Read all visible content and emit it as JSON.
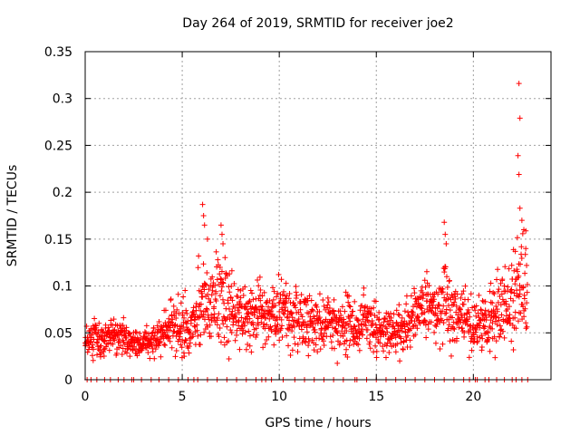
{
  "chart_data": {
    "type": "scatter",
    "title": "Day 264 of 2019, SRMTID for receiver joe2",
    "xlabel": "GPS time / hours",
    "ylabel": "SRMTID / TECUs",
    "xlim": [
      0,
      24
    ],
    "ylim": [
      0,
      0.35
    ],
    "x_ticks": [
      "0",
      "5",
      "10",
      "15",
      "20"
    ],
    "x_tick_values": [
      0,
      5,
      10,
      15,
      20
    ],
    "y_ticks": [
      "0",
      "0.05",
      "0.1",
      "0.15",
      "0.2",
      "0.25",
      "0.3",
      "0.35"
    ],
    "y_tick_values": [
      0,
      0.05,
      0.1,
      0.15,
      0.2,
      0.25,
      0.3,
      0.35
    ],
    "grid": true,
    "marker": "+",
    "color": "#ff0000",
    "series": [
      {
        "name": "SRMTID",
        "profile_hours": [
          0,
          0.5,
          1,
          1.5,
          2,
          2.5,
          3,
          3.5,
          4,
          4.5,
          5,
          5.5,
          6,
          6.5,
          7,
          7.5,
          8,
          8.5,
          9,
          9.5,
          10,
          10.5,
          11,
          11.5,
          12,
          12.5,
          13,
          13.5,
          14,
          14.5,
          15,
          15.5,
          16,
          16.5,
          17,
          17.5,
          18,
          18.5,
          19,
          19.5,
          20,
          20.5,
          21,
          21.5,
          22,
          22.5,
          22.8
        ],
        "profile_median": [
          0.04,
          0.042,
          0.045,
          0.047,
          0.045,
          0.038,
          0.037,
          0.042,
          0.05,
          0.058,
          0.052,
          0.055,
          0.08,
          0.075,
          0.085,
          0.07,
          0.065,
          0.068,
          0.07,
          0.062,
          0.075,
          0.07,
          0.068,
          0.065,
          0.062,
          0.06,
          0.055,
          0.058,
          0.06,
          0.062,
          0.055,
          0.052,
          0.05,
          0.055,
          0.075,
          0.08,
          0.075,
          0.085,
          0.07,
          0.065,
          0.055,
          0.06,
          0.065,
          0.075,
          0.085,
          0.095,
          0.085
        ],
        "profile_spread": [
          0.015,
          0.015,
          0.016,
          0.016,
          0.014,
          0.012,
          0.012,
          0.015,
          0.02,
          0.025,
          0.03,
          0.03,
          0.045,
          0.03,
          0.045,
          0.035,
          0.03,
          0.03,
          0.03,
          0.025,
          0.035,
          0.03,
          0.03,
          0.03,
          0.025,
          0.025,
          0.025,
          0.025,
          0.025,
          0.025,
          0.022,
          0.02,
          0.02,
          0.025,
          0.03,
          0.03,
          0.03,
          0.045,
          0.03,
          0.025,
          0.025,
          0.025,
          0.03,
          0.035,
          0.04,
          0.05,
          0.045
        ],
        "peaks": [
          {
            "x": 6.05,
            "y": 0.187
          },
          {
            "x": 6.1,
            "y": 0.175
          },
          {
            "x": 6.15,
            "y": 0.165
          },
          {
            "x": 7.0,
            "y": 0.165
          },
          {
            "x": 7.05,
            "y": 0.155
          },
          {
            "x": 7.1,
            "y": 0.145
          },
          {
            "x": 6.3,
            "y": 0.15
          },
          {
            "x": 18.5,
            "y": 0.168
          },
          {
            "x": 18.55,
            "y": 0.155
          },
          {
            "x": 18.6,
            "y": 0.145
          },
          {
            "x": 22.35,
            "y": 0.316
          },
          {
            "x": 22.4,
            "y": 0.279
          },
          {
            "x": 22.3,
            "y": 0.239
          },
          {
            "x": 22.35,
            "y": 0.219
          },
          {
            "x": 22.4,
            "y": 0.183
          },
          {
            "x": 22.5,
            "y": 0.17
          },
          {
            "x": 22.6,
            "y": 0.16
          },
          {
            "x": 22.7,
            "y": 0.14
          }
        ],
        "zero_hours": [
          0.1,
          0.3,
          0.6,
          1.0,
          1.3,
          1.7,
          2.0,
          2.4,
          2.5,
          2.9,
          3.4,
          3.8,
          4.3,
          4.8,
          5.3,
          5.6,
          5.8,
          6.3,
          6.8,
          7.3,
          7.8,
          8.3,
          8.8,
          9.1,
          9.3,
          9.6,
          10.2,
          10.8,
          11.3,
          11.8,
          12.3,
          12.8,
          13.3,
          13.9,
          14.0,
          14.5,
          15.0,
          15.5,
          16.0,
          16.5,
          17.0,
          17.5,
          18.0,
          18.5,
          19.0,
          19.5,
          19.8,
          20.1,
          20.2,
          20.6,
          20.8,
          21.2,
          21.6,
          22.0,
          22.2,
          22.5,
          22.8
        ]
      }
    ]
  }
}
